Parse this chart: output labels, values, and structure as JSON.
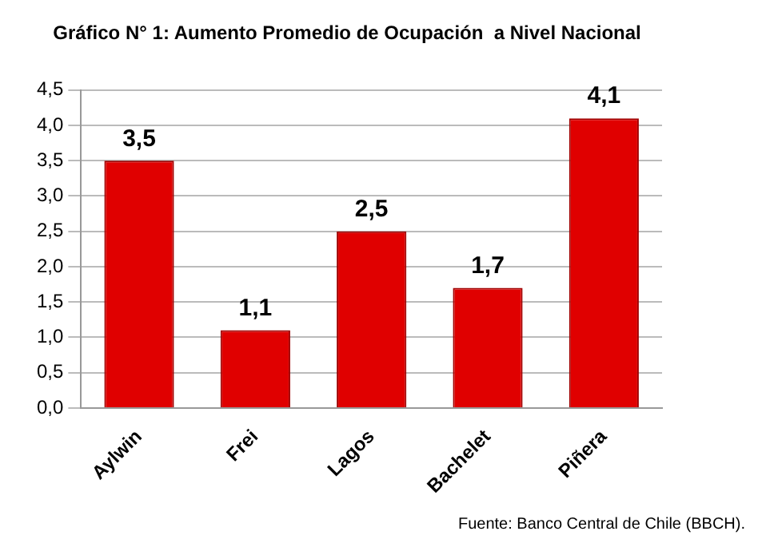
{
  "chart_data": {
    "type": "bar",
    "title": "Gráfico N° 1: Aumento Promedio de Ocupación  a Nivel Nacional",
    "categories": [
      "Aylwin",
      "Frei",
      "Lagos",
      "Bachelet",
      "Piñera"
    ],
    "values": [
      3.5,
      1.1,
      2.5,
      1.7,
      4.1
    ],
    "value_labels": [
      "3,5",
      "1,1",
      "2,5",
      "1,7",
      "4,1"
    ],
    "color": "#e00000",
    "ylim": [
      0,
      4.5
    ],
    "yticks": [
      {
        "value": 0,
        "label": "0,0"
      },
      {
        "value": 0.5,
        "label": "0,5"
      },
      {
        "value": 1,
        "label": "1,0"
      },
      {
        "value": 1.5,
        "label": "1,5"
      },
      {
        "value": 2,
        "label": "2,0"
      },
      {
        "value": 2.5,
        "label": "2,5"
      },
      {
        "value": 3,
        "label": "3,0"
      },
      {
        "value": 3.5,
        "label": "3,5"
      },
      {
        "value": 4,
        "label": "4,0"
      },
      {
        "value": 4.5,
        "label": "4,5"
      }
    ],
    "grid": "y",
    "annotations": [
      "Fuente: Banco Central de Chile (BBCH)."
    ]
  }
}
